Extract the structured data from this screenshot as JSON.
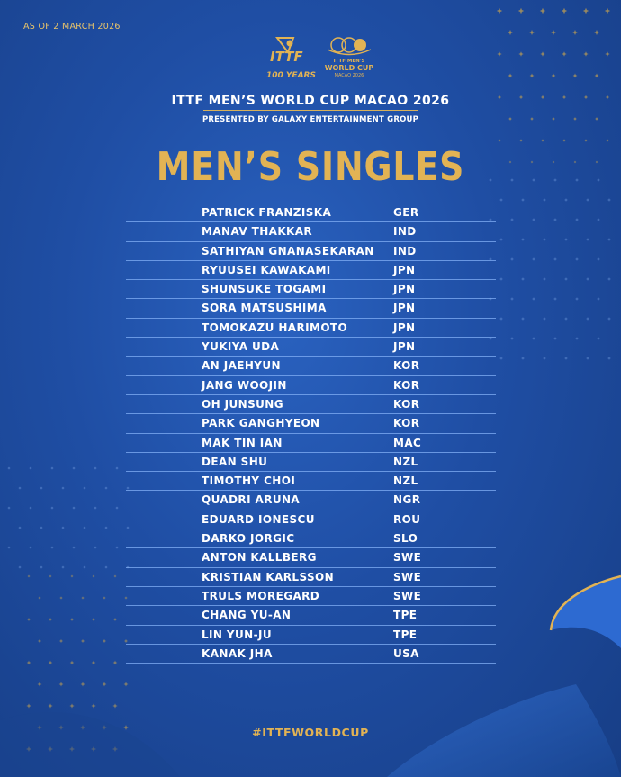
{
  "as_of": "AS OF 2 MARCH 2026",
  "logos": {
    "itff_mark": "ITTF",
    "itff_tagline": "100 YEARS",
    "event_logo_line1": "ITTF MEN'S",
    "event_logo_line2": "WORLD CUP",
    "event_logo_line3": "MACAO 2026"
  },
  "event_title": "ITTF MEN’S WORLD CUP MACAO 2026",
  "event_subtitle": "PRESENTED BY GALAXY ENTERTAINMENT GROUP",
  "heading": "MEN’S SINGLES",
  "players": [
    {
      "name": "PATRICK FRANZISKA",
      "country": "GER"
    },
    {
      "name": "MANAV THAKKAR",
      "country": "IND"
    },
    {
      "name": "SATHIYAN GNANASEKARAN",
      "country": "IND"
    },
    {
      "name": "RYUUSEI KAWAKAMI",
      "country": "JPN"
    },
    {
      "name": "SHUNSUKE TOGAMI",
      "country": "JPN"
    },
    {
      "name": "SORA MATSUSHIMA",
      "country": "JPN"
    },
    {
      "name": "TOMOKAZU HARIMOTO",
      "country": "JPN"
    },
    {
      "name": "YUKIYA UDA",
      "country": "JPN"
    },
    {
      "name": "AN JAEHYUN",
      "country": "KOR"
    },
    {
      "name": "JANG WOOJIN",
      "country": "KOR"
    },
    {
      "name": "OH JUNSUNG",
      "country": "KOR"
    },
    {
      "name": "PARK GANGHYEON",
      "country": "KOR"
    },
    {
      "name": "MAK TIN IAN",
      "country": "MAC"
    },
    {
      "name": "DEAN SHU",
      "country": "NZL"
    },
    {
      "name": "TIMOTHY CHOI",
      "country": "NZL"
    },
    {
      "name": "QUADRI ARUNA",
      "country": "NGR"
    },
    {
      "name": "EDUARD IONESCU",
      "country": "ROU"
    },
    {
      "name": "DARKO JORGIC",
      "country": "SLO"
    },
    {
      "name": "ANTON KALLBERG",
      "country": "SWE"
    },
    {
      "name": "KRISTIAN KARLSSON",
      "country": "SWE"
    },
    {
      "name": "TRULS MOREGARD",
      "country": "SWE"
    },
    {
      "name": "CHANG YU-AN",
      "country": "TPE"
    },
    {
      "name": "LIN YUN-JU",
      "country": "TPE"
    },
    {
      "name": "KANAK JHA",
      "country": "USA"
    }
  ],
  "hashtag": "#ITTFWORLDCUP",
  "colors": {
    "background": "#1f4ea4",
    "gold": "#e2b354",
    "text": "#ffffff",
    "rule": "#82aff5"
  }
}
